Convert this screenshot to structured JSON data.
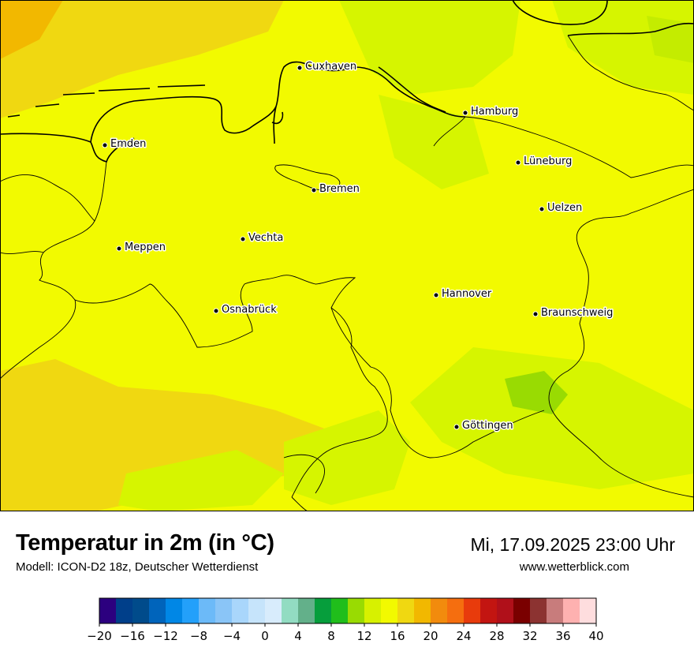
{
  "map": {
    "cities": [
      {
        "name": "Cuxhaven"
      },
      {
        "name": "Hamburg"
      },
      {
        "name": "Emden"
      },
      {
        "name": "Lüneburg"
      },
      {
        "name": "Bremen"
      },
      {
        "name": "Uelzen"
      },
      {
        "name": "Vechta"
      },
      {
        "name": "Meppen"
      },
      {
        "name": "Hannover"
      },
      {
        "name": "Osnabrück"
      },
      {
        "name": "Braunschweig"
      },
      {
        "name": "Göttingen"
      }
    ],
    "base_color": "#f2fa00",
    "warm_color": "#f0d811",
    "cool_color": "#d6f500"
  },
  "footer": {
    "title": "Temperatur in 2m (in °C)",
    "subtitle": "Modell: ICON-D2 18z, Deutscher Wetterdienst",
    "datetime": "Mi, 17.09.2025 23:00 Uhr",
    "website": "www.wetterblick.com"
  },
  "legend": {
    "colors": [
      "#2c007f",
      "#003f8a",
      "#004b8b",
      "#0064bb",
      "#0087e6",
      "#23a0fa",
      "#6cbaf8",
      "#8ac5f7",
      "#a9d6fb",
      "#c6e4fb",
      "#d8ecfc",
      "#92dcc2",
      "#63b08a",
      "#069e3c",
      "#20be1b",
      "#99db02",
      "#d7f100",
      "#f2fa00",
      "#f0d811",
      "#f2b800",
      "#f28b0d",
      "#f56e0f",
      "#e83b0c",
      "#c31511",
      "#b0101a",
      "#7a0000",
      "#8c3331",
      "#c87c7c",
      "#feb1b0",
      "#feddde"
    ],
    "ticks": [
      "−20",
      "−16",
      "−12",
      "−8",
      "−4",
      "0",
      "4",
      "8",
      "12",
      "16",
      "20",
      "24",
      "28",
      "32",
      "36",
      "40"
    ]
  }
}
